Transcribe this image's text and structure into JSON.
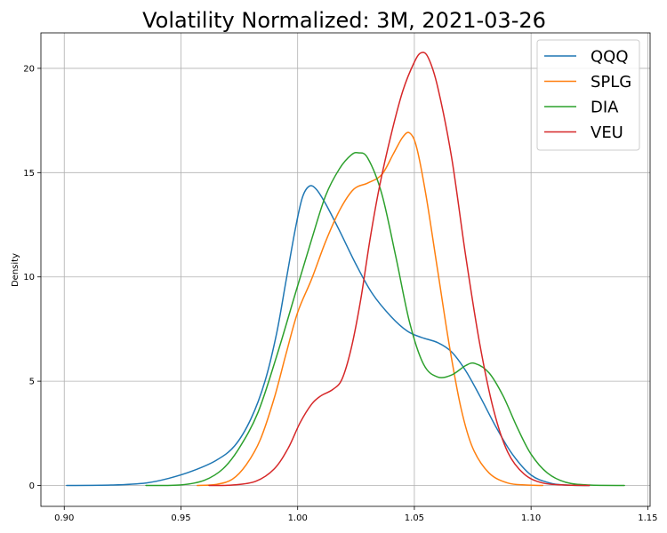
{
  "chart_data": {
    "type": "line",
    "title": "Volatility Normalized: 3M, 2021-03-26",
    "xlabel": "",
    "ylabel": "Density",
    "xlim": [
      0.89,
      1.151
    ],
    "ylim": [
      -1.0,
      21.7
    ],
    "xticks": [
      "0.90",
      "0.95",
      "1.00",
      "1.05",
      "1.10",
      "1.15"
    ],
    "yticks": [
      "0",
      "5",
      "10",
      "15",
      "20"
    ],
    "grid": true,
    "legend_position": "top-right",
    "series": [
      {
        "name": "QQQ",
        "color": "#1f77b4",
        "points": [
          [
            0.901,
            0.0
          ],
          [
            0.92,
            0.02
          ],
          [
            0.935,
            0.12
          ],
          [
            0.945,
            0.35
          ],
          [
            0.955,
            0.7
          ],
          [
            0.965,
            1.2
          ],
          [
            0.973,
            1.9
          ],
          [
            0.98,
            3.2
          ],
          [
            0.986,
            5.0
          ],
          [
            0.991,
            7.3
          ],
          [
            0.995,
            9.8
          ],
          [
            0.999,
            12.3
          ],
          [
            1.002,
            13.8
          ],
          [
            1.005,
            14.35
          ],
          [
            1.008,
            14.2
          ],
          [
            1.012,
            13.5
          ],
          [
            1.018,
            12.2
          ],
          [
            1.025,
            10.6
          ],
          [
            1.032,
            9.2
          ],
          [
            1.04,
            8.1
          ],
          [
            1.047,
            7.4
          ],
          [
            1.053,
            7.1
          ],
          [
            1.06,
            6.85
          ],
          [
            1.066,
            6.4
          ],
          [
            1.072,
            5.5
          ],
          [
            1.078,
            4.3
          ],
          [
            1.085,
            2.8
          ],
          [
            1.092,
            1.5
          ],
          [
            1.1,
            0.5
          ],
          [
            1.108,
            0.12
          ],
          [
            1.115,
            0.02
          ],
          [
            1.125,
            0.0
          ]
        ]
      },
      {
        "name": "SPLG",
        "color": "#ff7f0e",
        "points": [
          [
            0.957,
            0.0
          ],
          [
            0.965,
            0.05
          ],
          [
            0.972,
            0.3
          ],
          [
            0.978,
            1.0
          ],
          [
            0.984,
            2.2
          ],
          [
            0.99,
            4.2
          ],
          [
            0.995,
            6.3
          ],
          [
            1.0,
            8.3
          ],
          [
            1.006,
            9.9
          ],
          [
            1.012,
            11.7
          ],
          [
            1.018,
            13.2
          ],
          [
            1.024,
            14.2
          ],
          [
            1.03,
            14.5
          ],
          [
            1.036,
            14.9
          ],
          [
            1.041,
            15.9
          ],
          [
            1.045,
            16.7
          ],
          [
            1.048,
            16.9
          ],
          [
            1.051,
            16.2
          ],
          [
            1.055,
            13.9
          ],
          [
            1.06,
            10.3
          ],
          [
            1.065,
            6.7
          ],
          [
            1.07,
            3.7
          ],
          [
            1.075,
            1.8
          ],
          [
            1.082,
            0.6
          ],
          [
            1.09,
            0.12
          ],
          [
            1.098,
            0.02
          ],
          [
            1.105,
            0.0
          ]
        ]
      },
      {
        "name": "DIA",
        "color": "#2ca02c",
        "points": [
          [
            0.935,
            0.0
          ],
          [
            0.95,
            0.03
          ],
          [
            0.96,
            0.25
          ],
          [
            0.968,
            0.8
          ],
          [
            0.975,
            1.8
          ],
          [
            0.983,
            3.5
          ],
          [
            0.991,
            6.2
          ],
          [
            0.999,
            9.2
          ],
          [
            1.006,
            11.8
          ],
          [
            1.012,
            13.9
          ],
          [
            1.018,
            15.2
          ],
          [
            1.023,
            15.85
          ],
          [
            1.026,
            15.95
          ],
          [
            1.03,
            15.7
          ],
          [
            1.036,
            14.0
          ],
          [
            1.042,
            11.0
          ],
          [
            1.048,
            7.8
          ],
          [
            1.054,
            5.8
          ],
          [
            1.06,
            5.2
          ],
          [
            1.066,
            5.3
          ],
          [
            1.072,
            5.75
          ],
          [
            1.076,
            5.85
          ],
          [
            1.082,
            5.4
          ],
          [
            1.088,
            4.3
          ],
          [
            1.094,
            2.8
          ],
          [
            1.1,
            1.5
          ],
          [
            1.107,
            0.6
          ],
          [
            1.115,
            0.15
          ],
          [
            1.125,
            0.02
          ],
          [
            1.14,
            0.0
          ]
        ]
      },
      {
        "name": "VEU",
        "color": "#d62728",
        "points": [
          [
            0.962,
            0.0
          ],
          [
            0.972,
            0.02
          ],
          [
            0.982,
            0.2
          ],
          [
            0.99,
            0.8
          ],
          [
            0.996,
            1.8
          ],
          [
            1.001,
            3.0
          ],
          [
            1.006,
            3.9
          ],
          [
            1.01,
            4.3
          ],
          [
            1.015,
            4.6
          ],
          [
            1.019,
            5.1
          ],
          [
            1.023,
            6.6
          ],
          [
            1.027,
            8.9
          ],
          [
            1.031,
            11.8
          ],
          [
            1.035,
            14.3
          ],
          [
            1.04,
            16.8
          ],
          [
            1.045,
            18.9
          ],
          [
            1.05,
            20.3
          ],
          [
            1.053,
            20.75
          ],
          [
            1.056,
            20.5
          ],
          [
            1.06,
            19.1
          ],
          [
            1.066,
            15.7
          ],
          [
            1.072,
            11.0
          ],
          [
            1.078,
            6.8
          ],
          [
            1.084,
            3.6
          ],
          [
            1.09,
            1.6
          ],
          [
            1.097,
            0.55
          ],
          [
            1.105,
            0.12
          ],
          [
            1.115,
            0.02
          ],
          [
            1.125,
            0.0
          ]
        ]
      }
    ]
  }
}
